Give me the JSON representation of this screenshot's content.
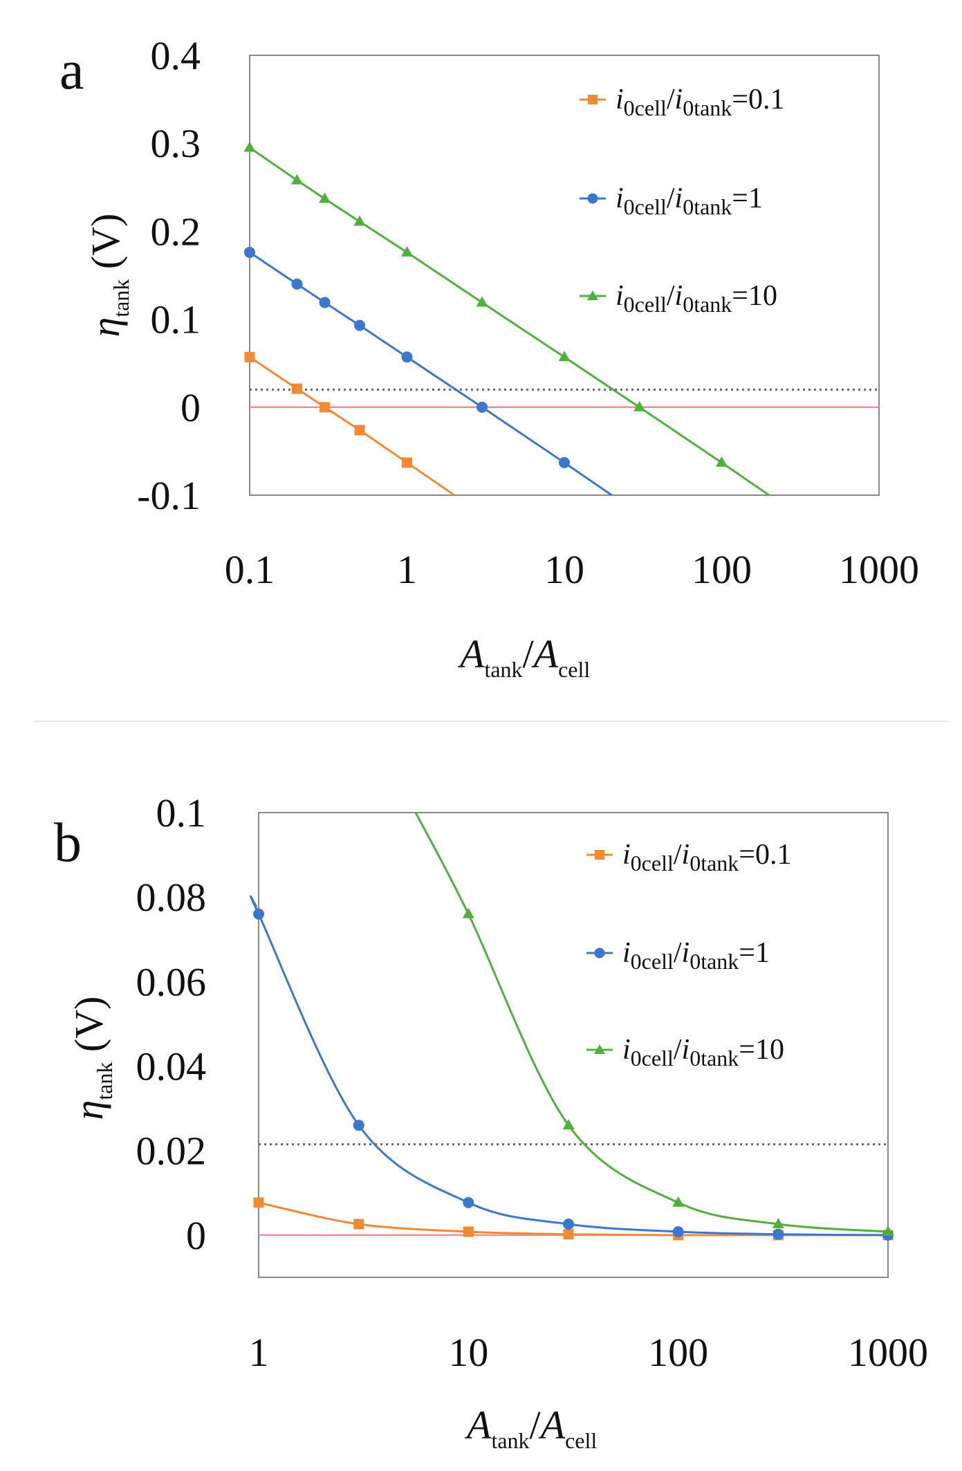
{
  "figure": {
    "separator_color": "#e6e6e6",
    "colors": {
      "series_0_1": "#f28a30",
      "series_1": "#3a78cf",
      "series_10": "#4fb13b",
      "zero_line": "#f28c9a",
      "threshold_line": "#666666",
      "frame": "#888888"
    }
  },
  "chart_data": [
    {
      "panel": "a",
      "type": "line",
      "x_scale": "log",
      "xlim": [
        0.1,
        1000
      ],
      "ylim": [
        -0.1,
        0.4
      ],
      "x_ticks": [
        "0.1",
        "1",
        "10",
        "100",
        "1000"
      ],
      "y_ticks": [
        "0.4",
        "0.3",
        "0.2",
        "0.1",
        "0",
        "-0.1"
      ],
      "y_tick_values": [
        0.4,
        0.3,
        0.2,
        0.1,
        0,
        -0.1
      ],
      "x_tick_values": [
        0.1,
        1,
        10,
        100,
        1000
      ],
      "xlabel": {
        "A": "A",
        "tank": "tank",
        "slash": "/",
        "cell": "cell"
      },
      "ylabel": {
        "eta": "η",
        "tank": "tank",
        "unit": " (V)"
      },
      "reference_lines": {
        "zero": 0,
        "threshold": 0.02,
        "threshold_style": "dotted"
      },
      "series": [
        {
          "name": "i0cell/i0tank=0.1",
          "ratio": "0.1",
          "marker": "square",
          "color": "#f28a30",
          "x": [
            0.1,
            0.2,
            0.3,
            0.5,
            1
          ],
          "y": [
            0.057,
            0.021,
            0.0,
            -0.026,
            -0.063
          ],
          "line_end": [
            2.0,
            -0.1
          ]
        },
        {
          "name": "i0cell/i0tank=1",
          "ratio": "1",
          "marker": "circle",
          "color": "#3a78cf",
          "x": [
            0.1,
            0.2,
            0.3,
            0.5,
            1,
            3,
            10
          ],
          "y": [
            0.176,
            0.14,
            0.119,
            0.093,
            0.057,
            0.0,
            -0.063
          ],
          "line_end": [
            20,
            -0.1
          ]
        },
        {
          "name": "i0cell/i0tank=10",
          "ratio": "10",
          "marker": "triangle",
          "color": "#4fb13b",
          "x": [
            0.1,
            0.2,
            0.3,
            0.5,
            1,
            3,
            10,
            30,
            100
          ],
          "y": [
            0.295,
            0.258,
            0.237,
            0.211,
            0.176,
            0.119,
            0.057,
            0.0,
            -0.063
          ],
          "line_end": [
            200,
            -0.1
          ]
        }
      ]
    },
    {
      "panel": "b",
      "type": "line",
      "x_scale": "log",
      "xlim": [
        1,
        1000
      ],
      "ylim": [
        -0.01,
        0.1
      ],
      "x_ticks": [
        "1",
        "10",
        "100",
        "1000"
      ],
      "x_tick_values": [
        1,
        10,
        100,
        1000
      ],
      "y_ticks": [
        "0.1",
        "0.08",
        "0.06",
        "0.04",
        "0.02",
        "0"
      ],
      "y_tick_values": [
        0.1,
        0.08,
        0.06,
        0.04,
        0.02,
        0
      ],
      "xlabel": {
        "A": "A",
        "tank": "tank",
        "slash": "/",
        "cell": "cell"
      },
      "ylabel": {
        "eta": "η",
        "tank": "tank",
        "unit": " (V)"
      },
      "reference_lines": {
        "zero": 0,
        "threshold": 0.0215,
        "threshold_style": "dotted"
      },
      "series": [
        {
          "name": "i0cell/i0tank=0.1",
          "ratio": "0.1",
          "marker": "square",
          "color": "#f28a30",
          "x": [
            1,
            3,
            10,
            30,
            100,
            300,
            1000
          ],
          "y": [
            0.0077,
            0.0026,
            0.0008,
            0.0002,
            0.0,
            0.0,
            0.0
          ]
        },
        {
          "name": "i0cell/i0tank=1",
          "ratio": "1",
          "marker": "circle",
          "color": "#3a78cf",
          "x": [
            1,
            3,
            10,
            30,
            100,
            300,
            1000
          ],
          "y": [
            0.076,
            0.026,
            0.0077,
            0.0026,
            0.0008,
            0.0002,
            0.0
          ],
          "curve_start": [
            0.98,
            0.0775
          ]
        },
        {
          "name": "i0cell/i0tank=10",
          "ratio": "10",
          "marker": "triangle",
          "color": "#4fb13b",
          "x": [
            10,
            30,
            100,
            300,
            1000
          ],
          "y": [
            0.076,
            0.026,
            0.0077,
            0.0026,
            0.0008
          ],
          "curve_start": [
            5.6,
            0.1
          ]
        }
      ]
    }
  ]
}
